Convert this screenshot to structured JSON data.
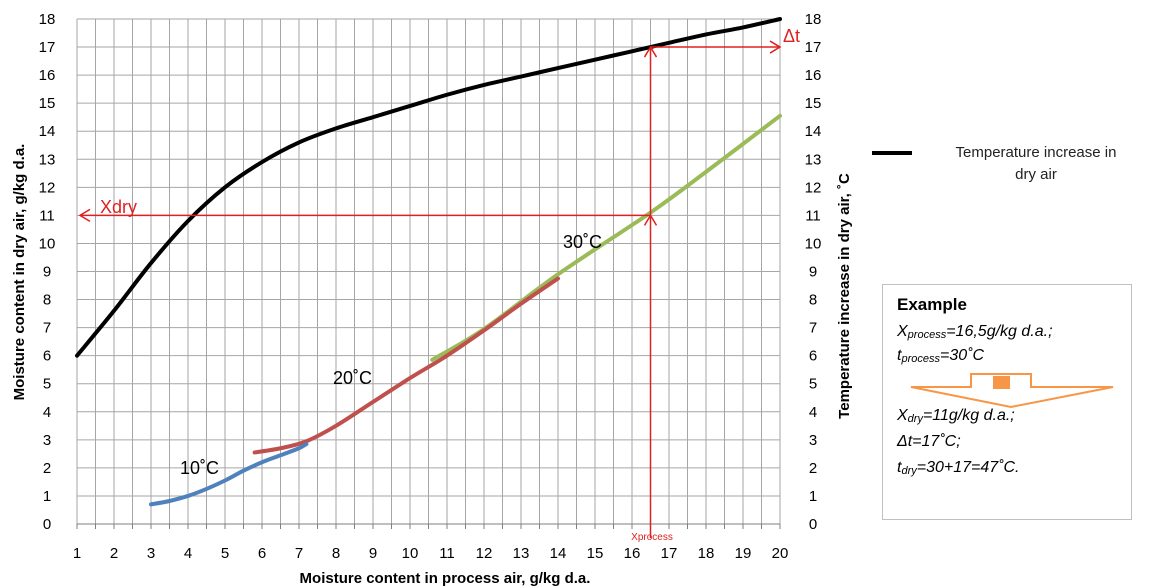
{
  "chart_data": {
    "type": "line",
    "xlabel": "Moisture content in process air, g/kg d.a.",
    "ylabel_left": "Moisture content in dry air, g/kg d.a.",
    "ylabel_right": "Temperature  increase in dry air, ˚C",
    "xlim": [
      1,
      20
    ],
    "ylim": [
      0,
      18
    ],
    "x_ticks": [
      "1",
      "2",
      "3",
      "4",
      "5",
      "6",
      "7",
      "8",
      "9",
      "10",
      "11",
      "12",
      "13",
      "14",
      "15",
      "16",
      "17",
      "18",
      "19",
      "20"
    ],
    "y_ticks": [
      "0",
      "1",
      "2",
      "3",
      "4",
      "5",
      "6",
      "7",
      "8",
      "9",
      "10",
      "11",
      "12",
      "13",
      "14",
      "15",
      "16",
      "17",
      "18"
    ],
    "grid": true,
    "series": [
      {
        "name": "Temperature increase in dry air",
        "color": "#000000",
        "axis": "right",
        "x": [
          1,
          2,
          3,
          4,
          5,
          6,
          7,
          8,
          9,
          10,
          11,
          12,
          13,
          14,
          15,
          16,
          17,
          18,
          19,
          20
        ],
        "y": [
          6.0,
          7.6,
          9.3,
          10.8,
          12.0,
          12.9,
          13.6,
          14.1,
          14.5,
          14.9,
          15.3,
          15.65,
          15.95,
          16.25,
          16.55,
          16.85,
          17.15,
          17.45,
          17.7,
          18.0
        ]
      },
      {
        "name": "10˚C",
        "color": "#4f81bd",
        "axis": "left",
        "x": [
          3.0,
          3.5,
          4.0,
          4.5,
          5.0,
          5.5,
          6.0,
          6.5,
          7.0,
          7.2
        ],
        "y": [
          0.7,
          0.82,
          1.0,
          1.25,
          1.55,
          1.9,
          2.2,
          2.45,
          2.7,
          2.85
        ]
      },
      {
        "name": "20˚C",
        "color": "#c0504d",
        "axis": "left",
        "x": [
          5.8,
          6.5,
          7.2,
          8.0,
          9.0,
          10.0,
          11.0,
          12.0,
          13.0,
          14.0
        ],
        "y": [
          2.55,
          2.7,
          2.95,
          3.5,
          4.35,
          5.2,
          6.0,
          6.9,
          7.85,
          8.75
        ]
      },
      {
        "name": "30˚C",
        "color": "#9bbb59",
        "axis": "left",
        "x": [
          10.6,
          12.0,
          14.0,
          16.5,
          18.0,
          20.0
        ],
        "y": [
          5.85,
          6.95,
          8.9,
          11.1,
          12.55,
          14.55
        ]
      }
    ],
    "series_labels": [
      "10˚C",
      "20˚C",
      "30˚C"
    ],
    "annotations": {
      "xdry": "Xdry",
      "dt": "Δt",
      "xprocess": "Xprocess",
      "xprocess_value": 16.5,
      "xdry_value": 11,
      "dt_value": 17
    }
  },
  "legend": {
    "label_line1": "Temperature increase in",
    "label_line2": "dry air"
  },
  "example": {
    "title": "Example",
    "l1_var": "X",
    "l1_sub": "process",
    "l1_rest": "=16,5g/kg d.a.;",
    "l2_var": "t",
    "l2_sub": "process",
    "l2_rest": "=30˚C",
    "l3_var": "X",
    "l3_sub": "dry",
    "l3_rest": "=11g/kg d.a.;",
    "l4": "Δt=17˚C;",
    "l5_var": "t",
    "l5_sub": "dry",
    "l5_rest": "=30+17=47˚C.",
    "arrow_color": "#f79646"
  }
}
